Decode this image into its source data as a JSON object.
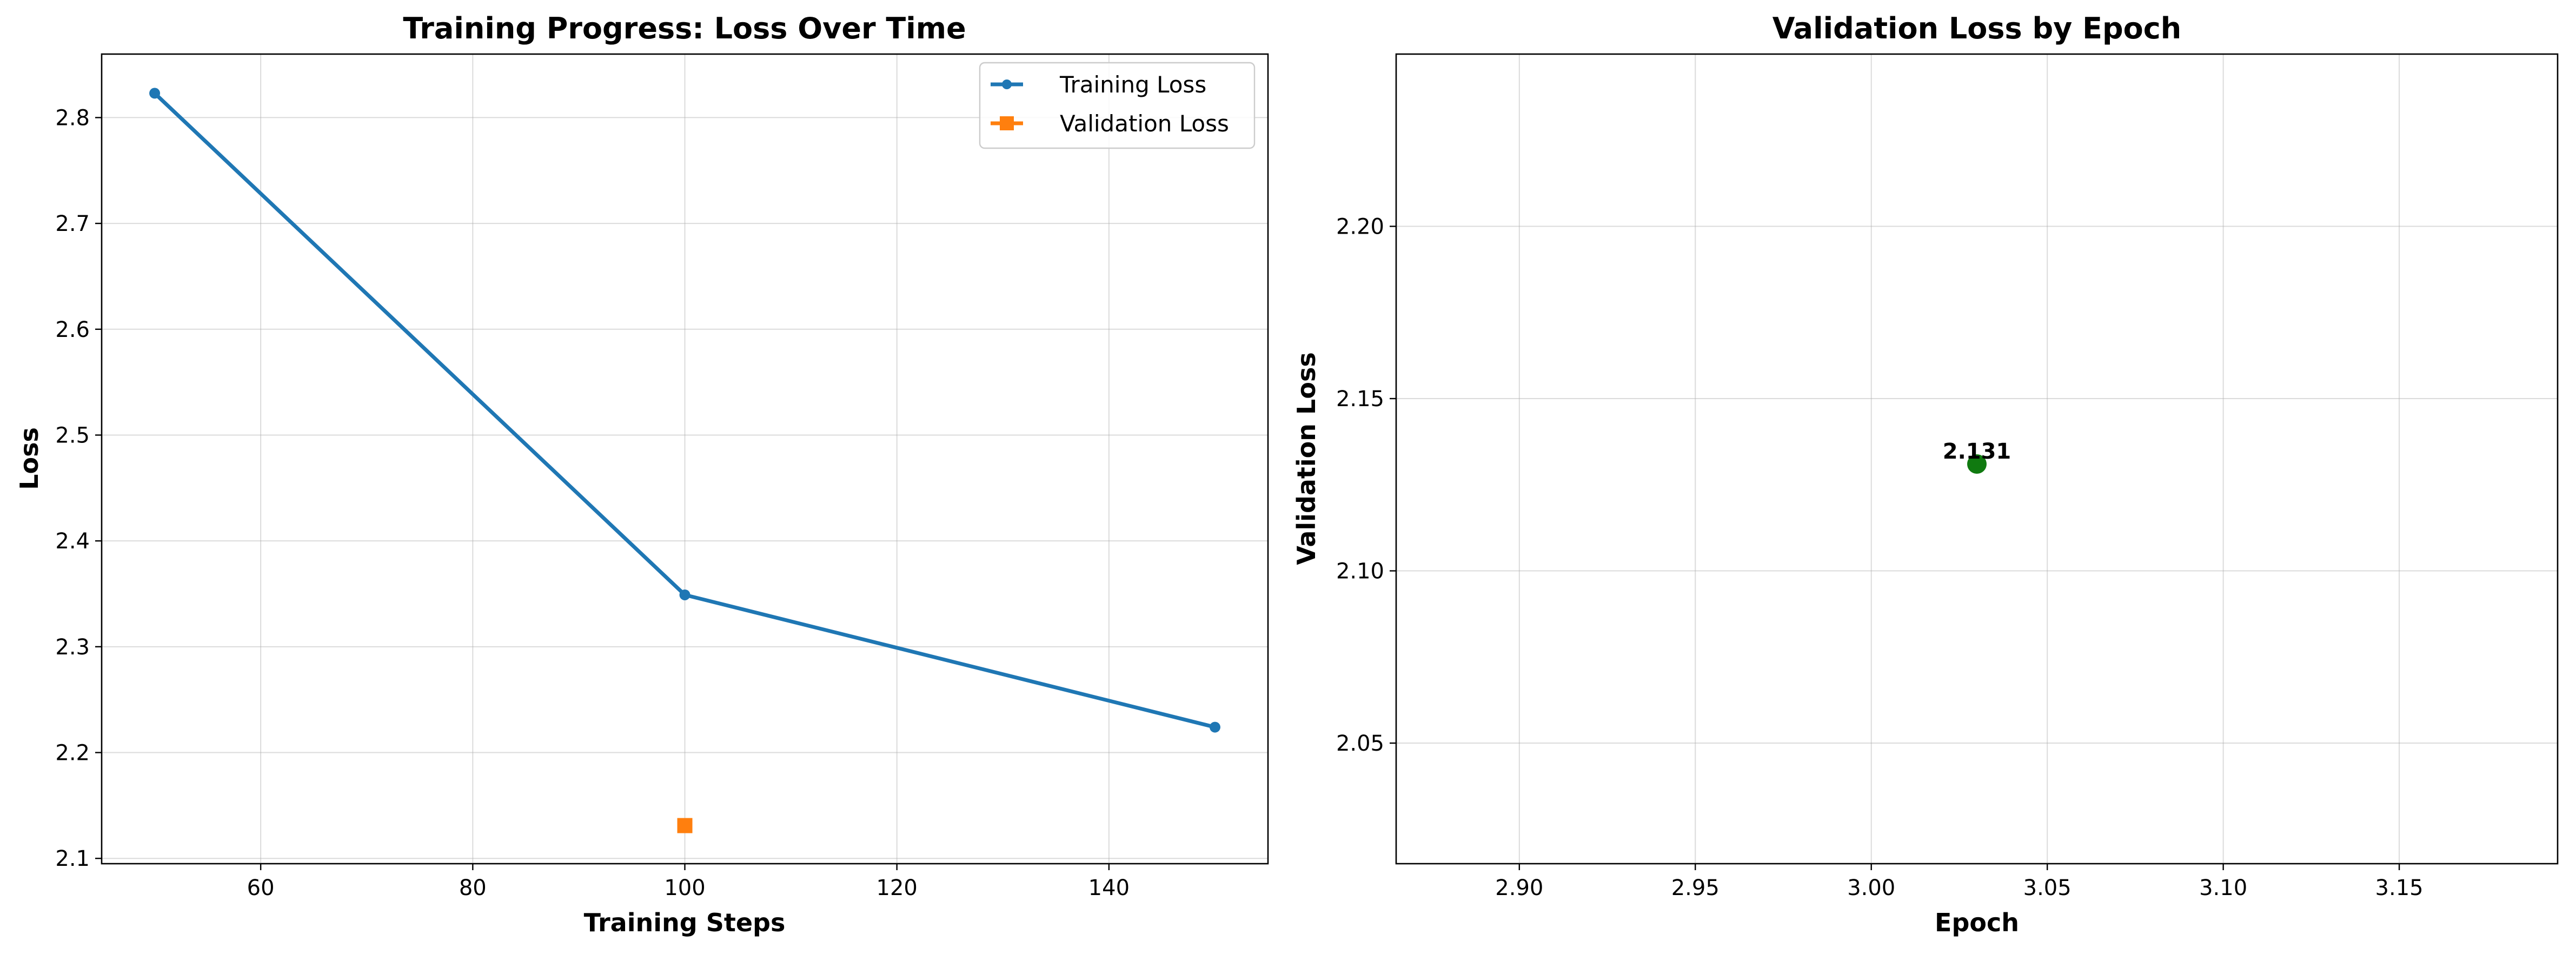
{
  "chart_data": [
    {
      "type": "line",
      "title": "Training Progress: Loss Over Time",
      "xlabel": "Training Steps",
      "ylabel": "Loss",
      "xlim": [
        45,
        155
      ],
      "ylim": [
        2.095,
        2.86
      ],
      "xticks": [
        60,
        80,
        100,
        120,
        140
      ],
      "yticks": [
        2.1,
        2.2,
        2.3,
        2.4,
        2.5,
        2.6,
        2.7,
        2.8
      ],
      "xtick_labels": [
        "60",
        "80",
        "100",
        "120",
        "140"
      ],
      "ytick_labels": [
        "2.1",
        "2.2",
        "2.3",
        "2.4",
        "2.5",
        "2.6",
        "2.7",
        "2.8"
      ],
      "grid": true,
      "legend_position": "top-right",
      "series": [
        {
          "name": "Training Loss",
          "color": "#1f77b4",
          "marker": "circle",
          "line": true,
          "x": [
            50,
            100,
            150
          ],
          "y": [
            2.823,
            2.349,
            2.224
          ]
        },
        {
          "name": "Validation Loss",
          "color": "#ff7f0e",
          "marker": "square",
          "line": true,
          "x": [
            100
          ],
          "y": [
            2.131
          ]
        }
      ]
    },
    {
      "type": "scatter",
      "title": "Validation Loss by Epoch",
      "xlabel": "Epoch",
      "ylabel": "Validation Loss",
      "xlim": [
        2.865,
        3.195
      ],
      "ylim": [
        2.015,
        2.25
      ],
      "xticks": [
        2.9,
        2.95,
        3.0,
        3.05,
        3.1,
        3.15
      ],
      "yticks": [
        2.05,
        2.1,
        2.15,
        2.2
      ],
      "xtick_labels": [
        "2.90",
        "2.95",
        "3.00",
        "3.05",
        "3.10",
        "3.15"
      ],
      "ytick_labels": [
        "2.05",
        "2.10",
        "2.15",
        "2.20"
      ],
      "grid": true,
      "series": [
        {
          "color": "#107a10",
          "marker": "circle",
          "line": false,
          "x": [
            3.03
          ],
          "y": [
            2.131
          ],
          "labels": [
            "2.131"
          ]
        }
      ]
    }
  ]
}
